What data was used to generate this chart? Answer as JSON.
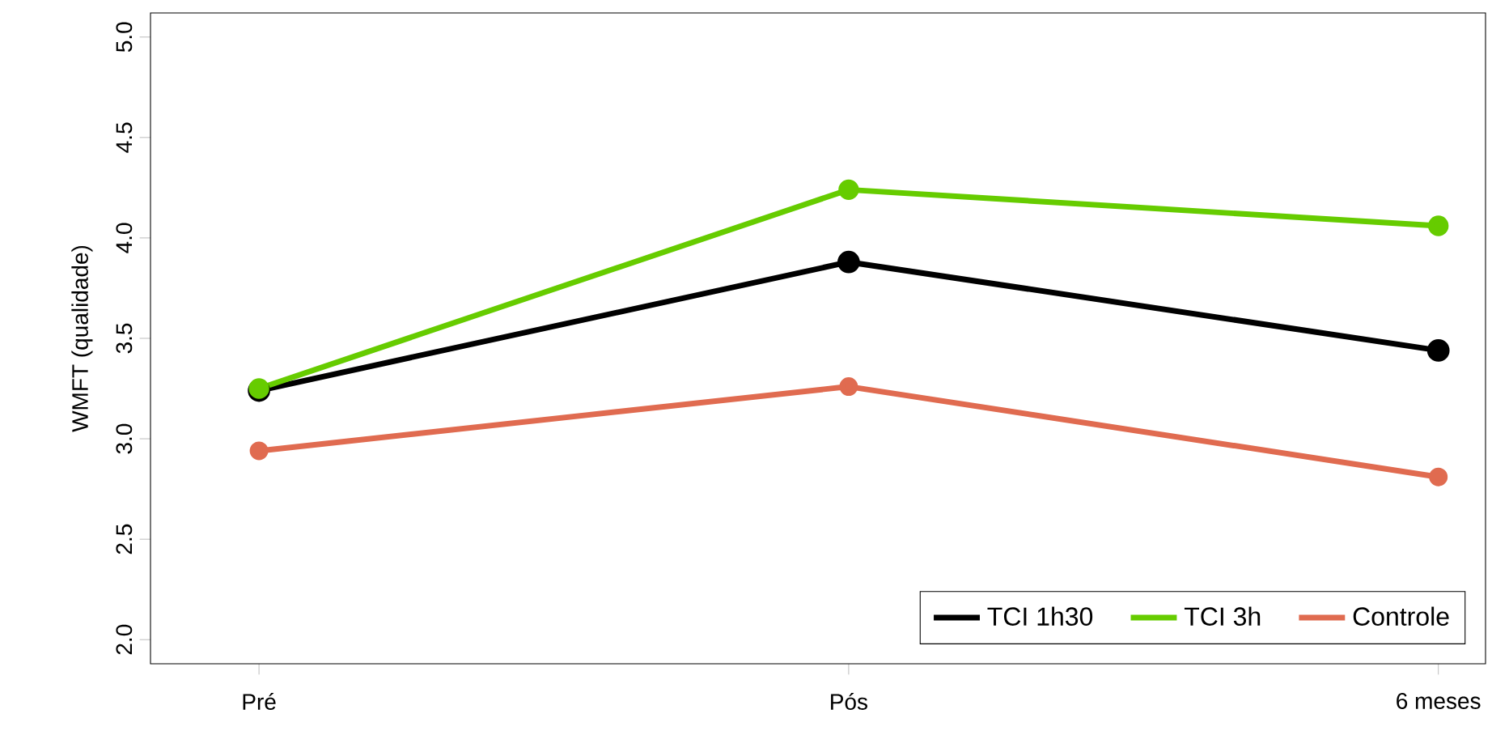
{
  "chart_data": {
    "type": "line",
    "ylabel": "WMFT (qualidade)",
    "categories": [
      "Pré",
      "Pós",
      "6 meses"
    ],
    "series": [
      {
        "name": "TCI 1h30",
        "color": "#000000",
        "values": [
          3.24,
          3.88,
          3.44
        ]
      },
      {
        "name": "TCI 3h",
        "color": "#66cc00",
        "values": [
          3.25,
          4.24,
          4.06
        ]
      },
      {
        "name": "Controle",
        "color": "#e06b50",
        "values": [
          2.94,
          3.26,
          2.81
        ]
      }
    ],
    "ylim": [
      1.88,
      5.12
    ],
    "yticks": [
      {
        "value": 2,
        "label": "2.0"
      },
      {
        "value": 2.5,
        "label": "2.5"
      },
      {
        "value": 3,
        "label": "3.0"
      },
      {
        "value": 3.5,
        "label": "3.5"
      },
      {
        "value": 4,
        "label": "4.0"
      },
      {
        "value": 4.5,
        "label": "4.5"
      },
      {
        "value": 5,
        "label": "5.0"
      }
    ],
    "grid": false,
    "legend": "bottom right",
    "marker": "circle",
    "line_style": "solid"
  }
}
